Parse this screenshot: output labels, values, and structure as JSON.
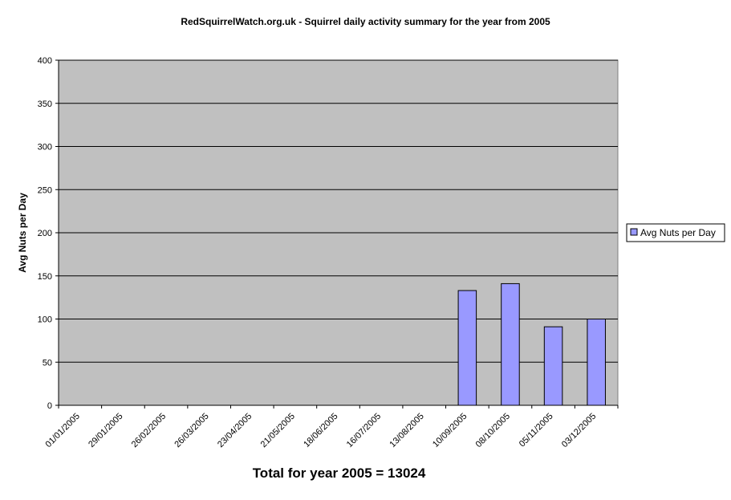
{
  "chart_data": {
    "type": "bar",
    "title": "RedSquirrelWatch.org.uk - Squirrel daily activity summary for the year from 2005",
    "ylabel": "Avg Nuts per Day",
    "xlabel": "",
    "ylim": [
      0,
      400
    ],
    "yticks": [
      0,
      50,
      100,
      150,
      200,
      250,
      300,
      350,
      400
    ],
    "categories": [
      "01/01/2005",
      "29/01/2005",
      "26/02/2005",
      "26/03/2005",
      "23/04/2005",
      "21/05/2005",
      "18/06/2005",
      "16/07/2005",
      "13/08/2005",
      "10/09/2005",
      "08/10/2005",
      "05/11/2005",
      "03/12/2005"
    ],
    "series": [
      {
        "name": "Avg Nuts per Day",
        "values": [
          0,
          0,
          0,
          0,
          0,
          0,
          0,
          0,
          0,
          133,
          141,
          91,
          100
        ],
        "color": "#9999ff"
      }
    ],
    "plot_background": "#c0c0c0",
    "grid": true,
    "legend": "right"
  },
  "footer": {
    "total_text": "Total for year 2005 = 13024"
  }
}
